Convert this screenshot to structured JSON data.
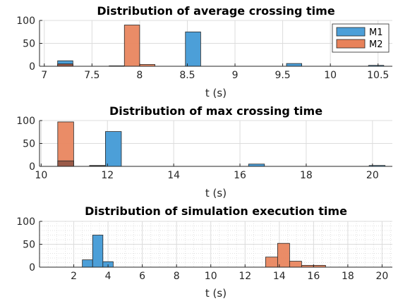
{
  "colors": {
    "m1": "#4c9fd8",
    "m2": "#e8825a",
    "overlap": "#9a5a48"
  },
  "chart_data": [
    {
      "type": "bar",
      "title": "Distribution of average crossing time",
      "xlabel": "t (s)",
      "xlim": [
        6.95,
        10.65
      ],
      "ylim": [
        0,
        100
      ],
      "xticks": [
        7,
        7.5,
        8,
        8.5,
        9,
        9.5,
        10,
        10.5
      ],
      "yticks": [
        0,
        50,
        100
      ],
      "grid": true,
      "minor_grid": false,
      "legend": {
        "placement": "top-right",
        "entries": [
          "M1",
          "M2"
        ]
      },
      "series": [
        {
          "name": "M1",
          "bins": [
            {
              "x0": 7.14,
              "x1": 7.3,
              "count": 12
            },
            {
              "x0": 7.68,
              "x1": 7.84,
              "count": 1
            },
            {
              "x0": 8.48,
              "x1": 8.64,
              "count": 75
            },
            {
              "x0": 9.54,
              "x1": 9.7,
              "count": 6
            },
            {
              "x0": 10.4,
              "x1": 10.56,
              "count": 2
            }
          ]
        },
        {
          "name": "M2",
          "bins": [
            {
              "x0": 7.14,
              "x1": 7.3,
              "count": 5
            },
            {
              "x0": 7.84,
              "x1": 8.0,
              "count": 90
            },
            {
              "x0": 8.0,
              "x1": 8.16,
              "count": 4
            }
          ]
        }
      ]
    },
    {
      "type": "bar",
      "title": "Distribution of max crossing time",
      "xlabel": "t (s)",
      "xlim": [
        9.95,
        20.6
      ],
      "ylim": [
        0,
        100
      ],
      "xticks": [
        10,
        12,
        14,
        16,
        18,
        20
      ],
      "yticks": [
        0,
        50,
        100
      ],
      "grid": true,
      "minor_grid": false,
      "legend": null,
      "series": [
        {
          "name": "M1",
          "bins": [
            {
              "x0": 10.5,
              "x1": 10.98,
              "count": 12
            },
            {
              "x0": 11.46,
              "x1": 11.94,
              "count": 1
            },
            {
              "x0": 11.94,
              "x1": 12.42,
              "count": 76
            },
            {
              "x0": 16.26,
              "x1": 16.74,
              "count": 5
            },
            {
              "x0": 19.9,
              "x1": 20.38,
              "count": 2
            }
          ]
        },
        {
          "name": "M2",
          "bins": [
            {
              "x0": 10.5,
              "x1": 10.98,
              "count": 97
            },
            {
              "x0": 11.46,
              "x1": 11.94,
              "count": 2
            }
          ]
        }
      ]
    },
    {
      "type": "bar",
      "title": "Distribution of simulation execution time",
      "xlabel": "t (s)",
      "xlim": [
        0,
        20.6
      ],
      "ylim": [
        0,
        100
      ],
      "xticks": [
        2,
        4,
        6,
        8,
        10,
        12,
        14,
        16,
        18,
        20
      ],
      "yticks": [
        0,
        50,
        100
      ],
      "grid": true,
      "minor_grid": true,
      "legend": null,
      "series": [
        {
          "name": "M1",
          "bins": [
            {
              "x0": 2.5,
              "x1": 3.1,
              "count": 16
            },
            {
              "x0": 3.1,
              "x1": 3.7,
              "count": 70
            },
            {
              "x0": 3.7,
              "x1": 4.3,
              "count": 12
            }
          ]
        },
        {
          "name": "M2",
          "bins": [
            {
              "x0": 13.2,
              "x1": 13.9,
              "count": 22
            },
            {
              "x0": 13.9,
              "x1": 14.6,
              "count": 52
            },
            {
              "x0": 14.6,
              "x1": 15.3,
              "count": 13
            },
            {
              "x0": 15.3,
              "x1": 16.0,
              "count": 4
            },
            {
              "x0": 16.0,
              "x1": 16.7,
              "count": 4
            }
          ]
        }
      ]
    }
  ]
}
